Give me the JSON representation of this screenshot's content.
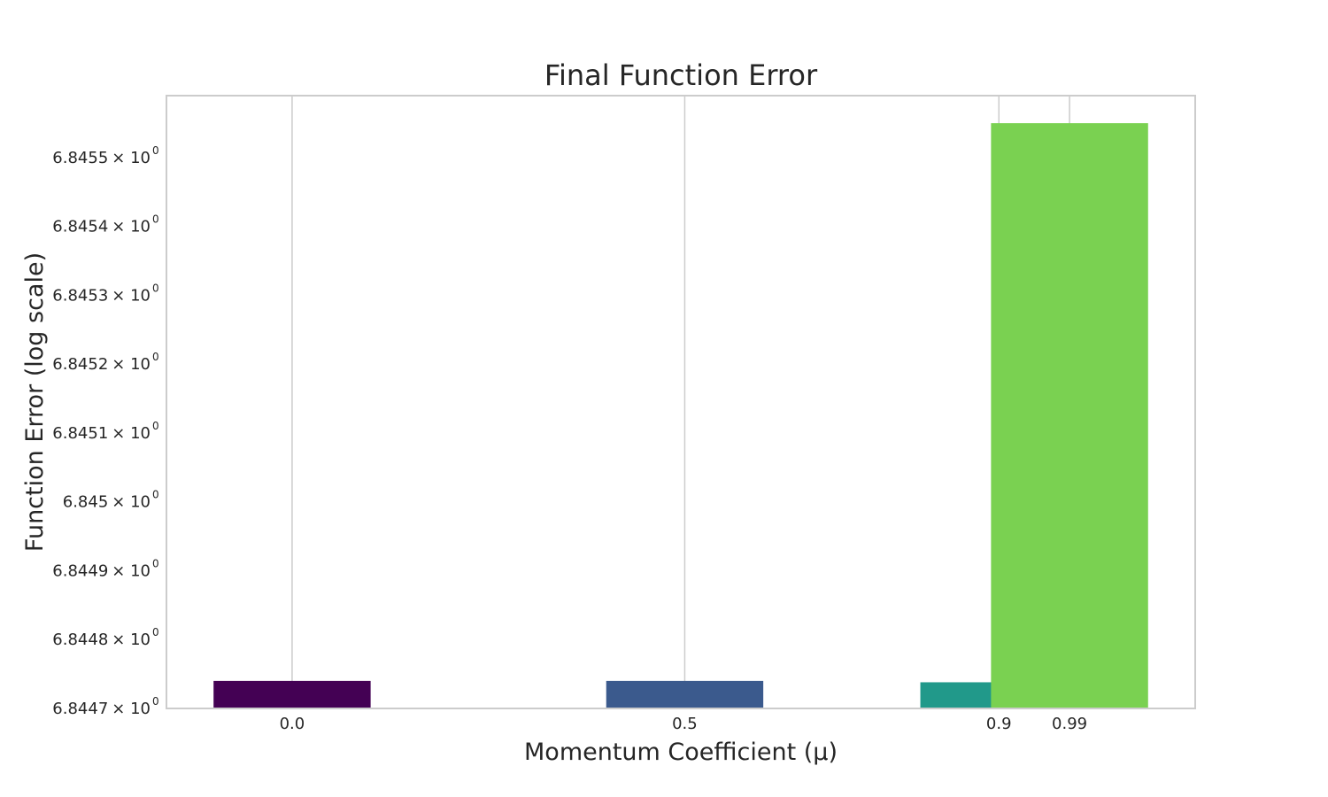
{
  "chart_data": {
    "type": "bar",
    "title": "Final Function Error",
    "xlabel": "Momentum Coefficient (μ)",
    "ylabel": "Function Error (log scale)",
    "yscale": "log",
    "grid": "vertical",
    "colors": [
      "#440154",
      "#3b5a8d",
      "#21998a",
      "#7ad151"
    ],
    "bars": [
      {
        "label": "0.0",
        "x": 0.0,
        "value": 6.84474
      },
      {
        "label": "0.5",
        "x": 0.5,
        "value": 6.84474
      },
      {
        "label": "0.9",
        "x": 0.9,
        "value": 6.844738
      },
      {
        "label": "0.99",
        "x": 0.99,
        "value": 6.84555
      }
    ],
    "bar_width": 0.2,
    "xlim": [
      -0.16,
      1.15
    ],
    "ylim": [
      6.8447,
      6.84559
    ],
    "yticks": [
      {
        "value": 6.8447,
        "mantissa": "6.8447",
        "base": "× 10",
        "exp": "0"
      },
      {
        "value": 6.8448,
        "mantissa": "6.8448",
        "base": "× 10",
        "exp": "0"
      },
      {
        "value": 6.8449,
        "mantissa": "6.8449",
        "base": "× 10",
        "exp": "0"
      },
      {
        "value": 6.845,
        "mantissa": "6.845",
        "base": "× 10",
        "exp": "0"
      },
      {
        "value": 6.8451,
        "mantissa": "6.8451",
        "base": "× 10",
        "exp": "0"
      },
      {
        "value": 6.8452,
        "mantissa": "6.8452",
        "base": "× 10",
        "exp": "0"
      },
      {
        "value": 6.8453,
        "mantissa": "6.8453",
        "base": "× 10",
        "exp": "0"
      },
      {
        "value": 6.8454,
        "mantissa": "6.8454",
        "base": "× 10",
        "exp": "0"
      },
      {
        "value": 6.8455,
        "mantissa": "6.8455",
        "base": "× 10",
        "exp": "0"
      }
    ]
  }
}
